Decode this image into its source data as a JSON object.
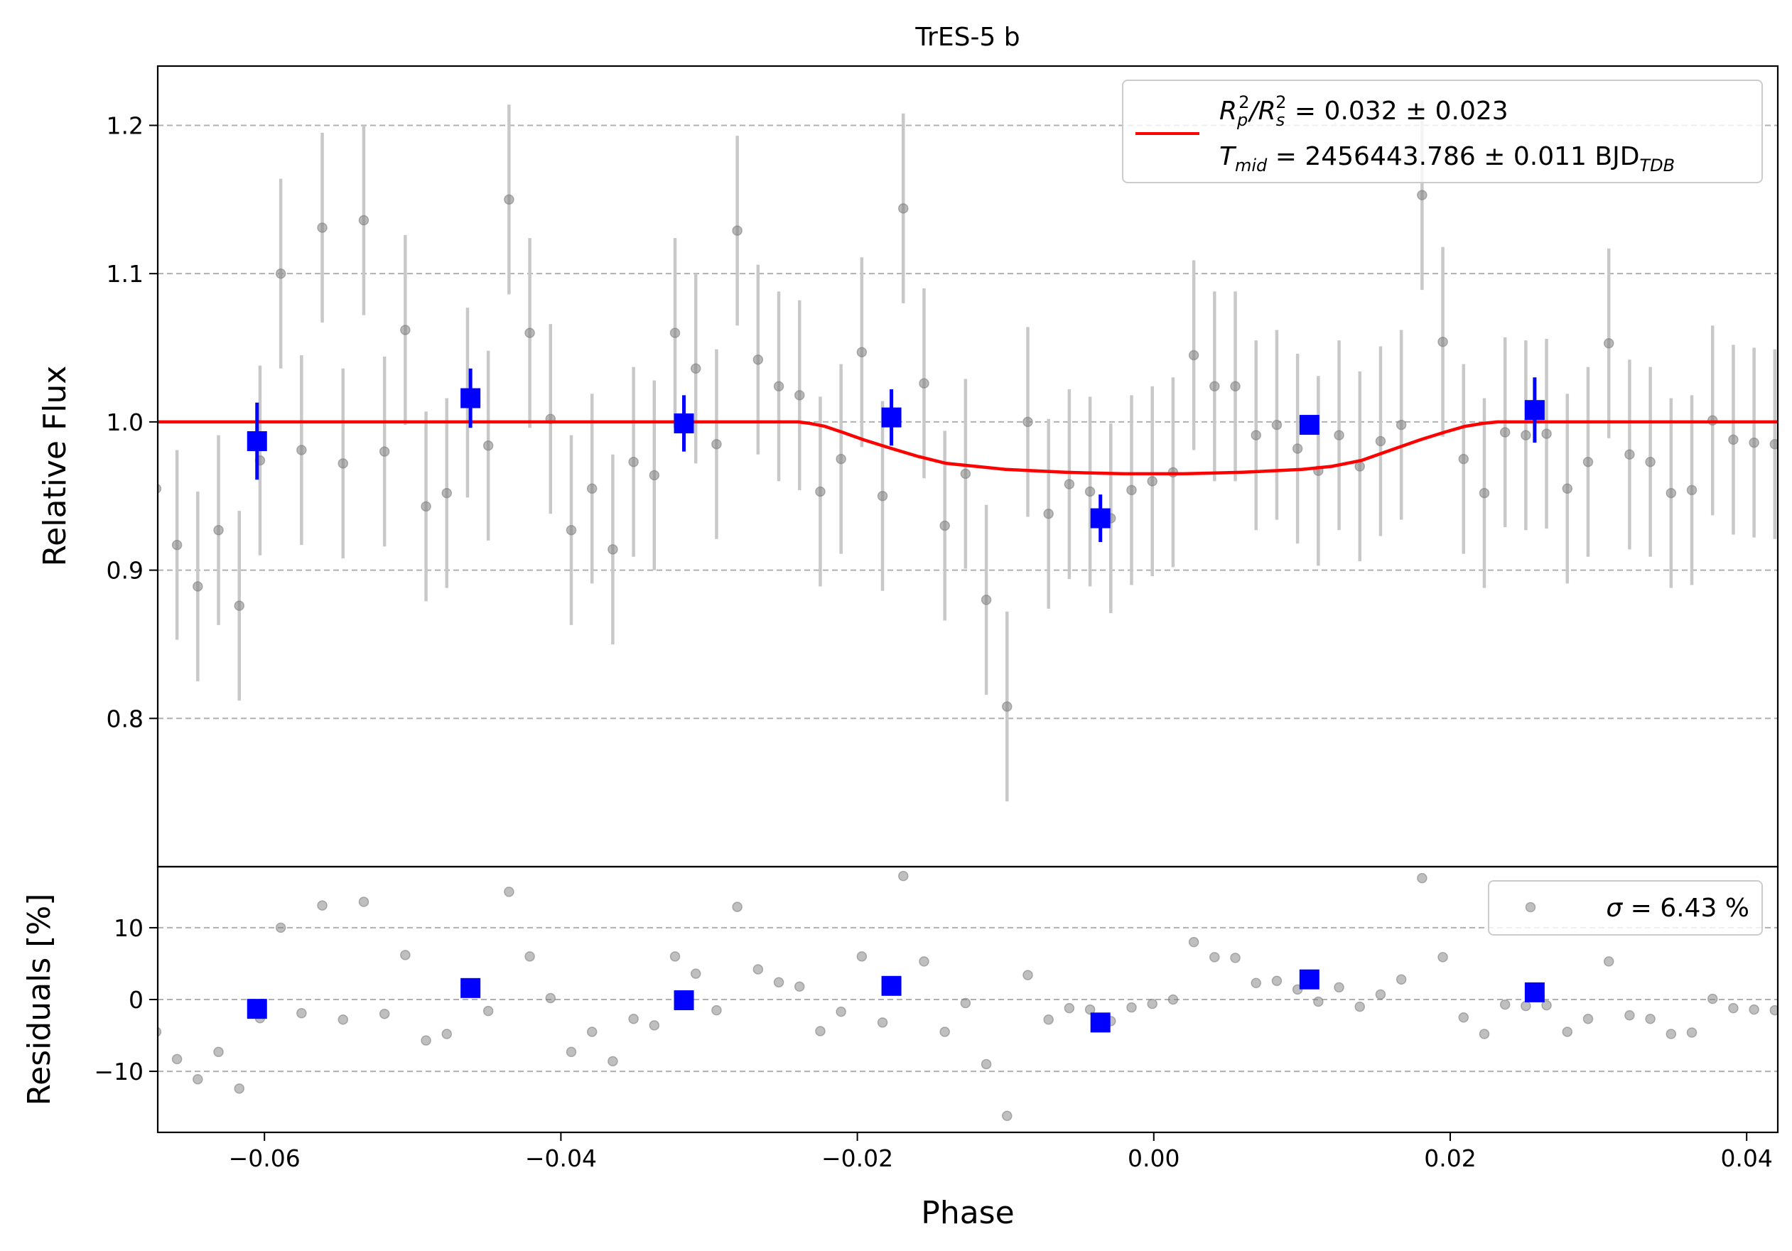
{
  "chart_data": [
    {
      "type": "scatter",
      "title": "TrES-5 b",
      "xlabel": "Phase",
      "ylabel": "Relative Flux",
      "xlim": [
        -0.0672,
        0.0421
      ],
      "ylim": [
        0.7,
        1.24
      ],
      "xticks": [
        -0.06,
        -0.04,
        -0.02,
        0.0,
        0.02,
        0.04
      ],
      "xtick_labels": [
        "−0.06",
        "−0.04",
        "−0.02",
        "0.00",
        "0.02",
        "0.04"
      ],
      "yticks": [
        0.8,
        0.9,
        1.0,
        1.1,
        1.2
      ],
      "ytick_labels": [
        "0.8",
        "0.9",
        "1.0",
        "1.1",
        "1.2"
      ],
      "grid": "horizontal dashed",
      "legend": {
        "placement": "top-right",
        "line1": {
          "base": "R",
          "sub1": "p",
          "sup1": "2",
          "mid": "/R",
          "sub2": "s",
          "sup2": "2",
          "value": " = 0.032 ± 0.023"
        },
        "line2": {
          "base": "T",
          "sub": "mid",
          "value": " = 2456443.786 ± 0.011 BJD",
          "unit_sub": "TDB"
        }
      },
      "colors": {
        "data": "#808080",
        "errorbar": "#c8c8c8",
        "binned": "#0000ff",
        "model": "#ff0000"
      },
      "data": {
        "x": [
          -0.0673,
          -0.0659,
          -0.0645,
          -0.0631,
          -0.0617,
          -0.0603,
          -0.0589,
          -0.0575,
          -0.0561,
          -0.0547,
          -0.0533,
          -0.0519,
          -0.0505,
          -0.0491,
          -0.0477,
          -0.0463,
          -0.0449,
          -0.0435,
          -0.0421,
          -0.0407,
          -0.0393,
          -0.0379,
          -0.0365,
          -0.0351,
          -0.0337,
          -0.0323,
          -0.0309,
          -0.0295,
          -0.0281,
          -0.0267,
          -0.0253,
          -0.0239,
          -0.0225,
          -0.0211,
          -0.0197,
          -0.0183,
          -0.0169,
          -0.0155,
          -0.0141,
          -0.0127,
          -0.0113,
          -0.0099,
          -0.0085,
          -0.0071,
          -0.0057,
          -0.0043,
          -0.0029,
          -0.0015,
          -0.0001,
          0.0013,
          0.0027,
          0.0041,
          0.0055,
          0.0069,
          0.0083,
          0.0097,
          0.0111,
          0.0125,
          0.0139,
          0.0153,
          0.0167,
          0.0181,
          0.0195,
          0.0209,
          0.0223,
          0.0237,
          0.0251,
          0.0265,
          0.0279,
          0.0293,
          0.0307,
          0.0321,
          0.0335,
          0.0349,
          0.0363,
          0.0377,
          0.0391,
          0.0405,
          0.0419
        ],
        "y": [
          0.955,
          0.917,
          0.889,
          0.927,
          0.876,
          0.974,
          1.1,
          0.981,
          1.131,
          0.972,
          1.136,
          0.98,
          1.062,
          0.943,
          0.952,
          1.013,
          0.984,
          1.15,
          1.06,
          1.002,
          0.927,
          0.955,
          0.914,
          0.973,
          0.964,
          1.06,
          1.036,
          0.985,
          1.129,
          1.042,
          1.024,
          1.018,
          0.953,
          0.975,
          1.047,
          0.95,
          1.144,
          1.026,
          0.93,
          0.965,
          0.88,
          0.808,
          1.0,
          0.938,
          0.958,
          0.953,
          0.935,
          0.954,
          0.96,
          0.966,
          1.045,
          1.024,
          1.024,
          0.991,
          0.998,
          0.982,
          0.967,
          0.991,
          0.97,
          0.987,
          0.998,
          1.153,
          1.054,
          0.975,
          0.952,
          0.993,
          0.991,
          0.992,
          0.955,
          0.973,
          1.053,
          0.978,
          0.973,
          0.952,
          0.954,
          1.001,
          0.988,
          0.986,
          0.985
        ],
        "yerr": 0.064
      },
      "binned": {
        "x": [
          -0.0605,
          -0.0461,
          -0.0317,
          -0.0177,
          -0.0036,
          0.0105,
          0.0257
        ],
        "y": [
          0.987,
          1.016,
          0.999,
          1.003,
          0.935,
          0.998,
          1.008
        ],
        "yerr": [
          0.026,
          0.02,
          0.019,
          0.019,
          0.016,
          0.006,
          0.022
        ]
      },
      "model": {
        "x": [
          -0.0672,
          -0.024,
          -0.0232,
          -0.0222,
          -0.021,
          -0.0196,
          -0.018,
          -0.016,
          -0.014,
          -0.012,
          -0.01,
          -0.008,
          -0.006,
          -0.004,
          -0.002,
          0.0,
          0.002,
          0.004,
          0.006,
          0.008,
          0.01,
          0.012,
          0.014,
          0.016,
          0.018,
          0.0196,
          0.021,
          0.0222,
          0.0232,
          0.024,
          0.0421
        ],
        "y": [
          1.0,
          1.0,
          0.999,
          0.997,
          0.993,
          0.988,
          0.983,
          0.977,
          0.972,
          0.97,
          0.968,
          0.967,
          0.966,
          0.9655,
          0.965,
          0.965,
          0.965,
          0.9655,
          0.966,
          0.967,
          0.968,
          0.97,
          0.974,
          0.981,
          0.988,
          0.993,
          0.997,
          0.999,
          1.0,
          1.0,
          1.0
        ]
      }
    },
    {
      "type": "scatter",
      "xlabel": "Phase",
      "ylabel": "Residuals [%]",
      "xlim": [
        -0.0672,
        0.0421
      ],
      "ylim": [
        -18.5,
        18.5
      ],
      "yticks": [
        -10,
        0,
        10
      ],
      "ytick_labels": [
        "−10",
        "0",
        "10"
      ],
      "grid": "horizontal dashed",
      "legend": {
        "placement": "top-right",
        "sigma_symbol": "σ",
        "label": " = 6.43 %"
      },
      "data": {
        "x": [
          -0.0673,
          -0.0659,
          -0.0645,
          -0.0631,
          -0.0617,
          -0.0603,
          -0.0589,
          -0.0575,
          -0.0561,
          -0.0547,
          -0.0533,
          -0.0519,
          -0.0505,
          -0.0491,
          -0.0477,
          -0.0463,
          -0.0449,
          -0.0435,
          -0.0421,
          -0.0407,
          -0.0393,
          -0.0379,
          -0.0365,
          -0.0351,
          -0.0337,
          -0.0323,
          -0.0309,
          -0.0295,
          -0.0281,
          -0.0267,
          -0.0253,
          -0.0239,
          -0.0225,
          -0.0211,
          -0.0197,
          -0.0183,
          -0.0169,
          -0.0155,
          -0.0141,
          -0.0127,
          -0.0113,
          -0.0099,
          -0.0085,
          -0.0071,
          -0.0057,
          -0.0043,
          -0.0029,
          -0.0015,
          -0.0001,
          0.0013,
          0.0027,
          0.0041,
          0.0055,
          0.0069,
          0.0083,
          0.0097,
          0.0111,
          0.0125,
          0.0139,
          0.0153,
          0.0167,
          0.0181,
          0.0195,
          0.0209,
          0.0223,
          0.0237,
          0.0251,
          0.0265,
          0.0279,
          0.0293,
          0.0307,
          0.0321,
          0.0335,
          0.0349,
          0.0363,
          0.0377,
          0.0391,
          0.0405,
          0.0419
        ],
        "y": [
          -4.5,
          -8.3,
          -11.1,
          -7.3,
          -12.4,
          -2.6,
          10.0,
          -1.9,
          13.1,
          -2.8,
          13.6,
          -2.0,
          6.2,
          -5.7,
          -4.8,
          1.3,
          -1.6,
          15.0,
          6.0,
          0.2,
          -7.3,
          -4.5,
          -8.6,
          -2.7,
          -3.6,
          6.0,
          3.6,
          -1.5,
          12.9,
          4.2,
          2.4,
          1.8,
          -4.4,
          -1.7,
          6.0,
          -3.2,
          17.2,
          5.3,
          -4.5,
          -0.5,
          -9.0,
          -16.2,
          3.4,
          -2.8,
          -1.2,
          -1.4,
          -3.0,
          -1.1,
          -0.6,
          0.0,
          8.0,
          5.9,
          5.8,
          2.3,
          2.6,
          1.4,
          -0.3,
          1.7,
          -1.0,
          0.7,
          2.8,
          16.9,
          5.9,
          -2.5,
          -4.8,
          -0.7,
          -0.9,
          -0.8,
          -4.5,
          -2.7,
          5.3,
          -2.2,
          -2.7,
          -4.8,
          -4.6,
          0.1,
          -1.2,
          -1.4,
          -1.5
        ]
      },
      "binned": {
        "x": [
          -0.0605,
          -0.0461,
          -0.0317,
          -0.0177,
          -0.0036,
          0.0105,
          0.0257
        ],
        "y": [
          -1.3,
          1.6,
          -0.1,
          1.9,
          -3.2,
          2.8,
          1.0
        ]
      }
    }
  ]
}
